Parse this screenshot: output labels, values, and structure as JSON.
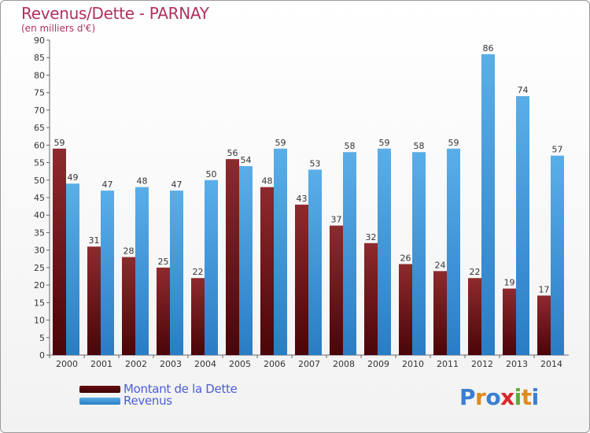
{
  "header": {
    "title": "Revenus/Dette - PARNAY",
    "subtitle": "(en milliers d'€)"
  },
  "colors": {
    "dette": "#8b1a1a",
    "revenus": "#3a9ee8",
    "title": "#b03060"
  },
  "chart_data": {
    "type": "bar",
    "title": "Revenus/Dette - PARNAY",
    "subtitle": "(en milliers d'€)",
    "categories": [
      "2000",
      "2001",
      "2002",
      "2003",
      "2004",
      "2005",
      "2006",
      "2007",
      "2008",
      "2009",
      "2010",
      "2011",
      "2012",
      "2013",
      "2014"
    ],
    "series": [
      {
        "name": "Montant de la Dette",
        "values": [
          59,
          31,
          28,
          25,
          22,
          56,
          48,
          43,
          37,
          32,
          26,
          24,
          22,
          19,
          17
        ]
      },
      {
        "name": "Revenus",
        "values": [
          49,
          47,
          48,
          47,
          50,
          54,
          59,
          53,
          58,
          59,
          58,
          59,
          86,
          74,
          57
        ]
      }
    ],
    "ylim": [
      0,
      90
    ],
    "yticks": [
      0,
      5,
      10,
      15,
      20,
      25,
      30,
      35,
      40,
      45,
      50,
      55,
      60,
      65,
      70,
      75,
      80,
      85,
      90
    ],
    "grid": false,
    "legend_position": "bottom-left"
  },
  "legend": {
    "items": [
      "Montant de la Dette",
      "Revenus"
    ]
  },
  "logo": {
    "text": "Proxiti",
    "letters": [
      "P",
      "r",
      "o",
      "x",
      "i",
      "t",
      "i"
    ],
    "letter_colors": [
      "#3a7fd0",
      "#e08a1e",
      "#3a7fd0",
      "#d8262a",
      "#5aae3a",
      "#e08a1e",
      "#3a7fd0"
    ]
  }
}
